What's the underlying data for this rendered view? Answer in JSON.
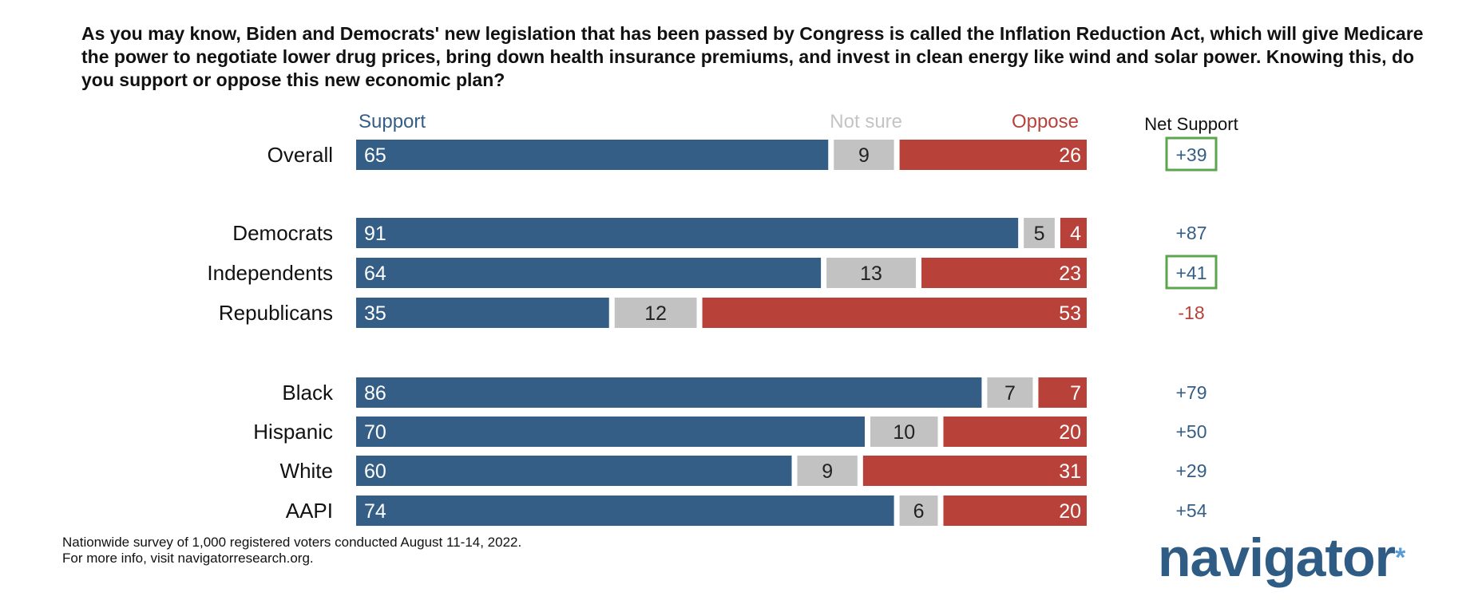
{
  "question": "As you may know, Biden and Democrats' new legislation that has been passed by Congress is called the Inflation Reduction Act, which will give Medicare the power to negotiate lower drug prices, bring down health insurance premiums, and invest in clean energy like wind and solar power. Knowing this, do you support or oppose this new economic plan?",
  "footnote": {
    "line1": "Nationwide survey of 1,000 registered voters conducted August 11-14, 2022.",
    "line2": "For more info, visit navigatorresearch.org."
  },
  "logo": {
    "text": "navigator",
    "mark": "*"
  },
  "colors": {
    "support": "#345e86",
    "not_sure": "#c2c2c2",
    "oppose": "#b8413a",
    "net_positive": "#345e86",
    "net_negative": "#b8413a",
    "highlight_box": "#5aa54d",
    "not_sure_header": "#c4c4c4"
  },
  "chart_data": {
    "type": "bar",
    "orientation": "horizontal",
    "stacked": true,
    "xlim": [
      0,
      100
    ],
    "legend_headers": [
      "Support",
      "Not sure",
      "Oppose"
    ],
    "net_header": "Net Support",
    "categories": [
      "Overall",
      "Democrats",
      "Independents",
      "Republicans",
      "Black",
      "Hispanic",
      "White",
      "AAPI"
    ],
    "series": [
      {
        "name": "Support",
        "values": [
          65,
          91,
          64,
          35,
          86,
          70,
          60,
          74
        ]
      },
      {
        "name": "Not sure",
        "values": [
          9,
          5,
          13,
          12,
          7,
          10,
          9,
          6
        ]
      },
      {
        "name": "Oppose",
        "values": [
          26,
          4,
          23,
          53,
          7,
          20,
          31,
          20
        ]
      }
    ],
    "net_support": [
      "+39",
      "+87",
      "+41",
      "-18",
      "+79",
      "+50",
      "+29",
      "+54"
    ],
    "net_highlighted": [
      "Overall",
      "Independents"
    ]
  }
}
